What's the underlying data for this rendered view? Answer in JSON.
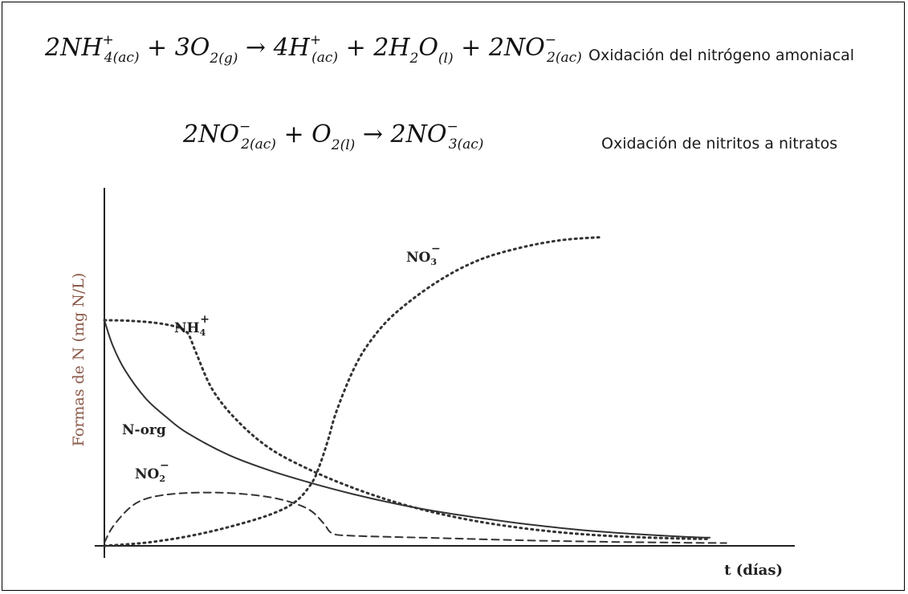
{
  "equations": [
    {
      "parts": [
        "2NH",
        "4(ac)",
        "+",
        "+ 3O",
        "2(g)",
        "→ 4H",
        "(ac)",
        "+",
        "+ 2H",
        "2",
        "O",
        "(l)",
        "+ 2NO",
        "2(ac)",
        "−"
      ],
      "note": "Oxidación del nitrógeno amoniacal"
    },
    {
      "parts": [
        "2NO",
        "2(ac)",
        "−",
        "+ O",
        "2(l)",
        "→ 2NO",
        "3(ac)",
        "−"
      ],
      "note": "Oxidación de nitritos a nitratos"
    }
  ],
  "chart_data": {
    "type": "line",
    "xlabel": "t (días)",
    "ylabel": "Formas de N (mg N/L)",
    "grid": false,
    "series": [
      {
        "name": "NH4+",
        "label": "NH",
        "label_sub": "4",
        "label_sup": "+",
        "style": "dotted",
        "x": [
          0,
          0.3,
          0.6,
          0.85,
          1.0,
          1.1,
          1.3,
          1.6,
          2.0,
          2.5,
          3.0,
          3.5,
          4.0,
          4.5,
          5.0,
          5.5,
          6.0,
          6.5,
          7.0,
          7.3
        ],
        "y": [
          0.72,
          0.718,
          0.712,
          0.7,
          0.68,
          0.62,
          0.5,
          0.4,
          0.31,
          0.24,
          0.185,
          0.14,
          0.105,
          0.078,
          0.058,
          0.043,
          0.033,
          0.027,
          0.023,
          0.022
        ]
      },
      {
        "name": "N-org",
        "label": "N-org",
        "style": "solid",
        "x": [
          0,
          0.1,
          0.25,
          0.5,
          0.75,
          1.0,
          1.5,
          2.0,
          2.5,
          3.0,
          3.5,
          4.0,
          4.5,
          5.0,
          5.5,
          6.0,
          6.5,
          7.0,
          7.3
        ],
        "y": [
          0.72,
          0.64,
          0.56,
          0.47,
          0.41,
          0.36,
          0.29,
          0.24,
          0.2,
          0.165,
          0.135,
          0.11,
          0.09,
          0.072,
          0.057,
          0.045,
          0.036,
          0.029,
          0.026
        ]
      },
      {
        "name": "NO2-",
        "label": "NO",
        "label_sub": "2",
        "label_sup": "−",
        "style": "dashed",
        "x": [
          0,
          0.1,
          0.3,
          0.5,
          0.8,
          1.2,
          1.6,
          2.0,
          2.3,
          2.5,
          2.65,
          2.75,
          3.0,
          4.0,
          5.0,
          6.0,
          7.0,
          7.5
        ],
        "y": [
          0.01,
          0.06,
          0.12,
          0.15,
          0.165,
          0.17,
          0.167,
          0.155,
          0.135,
          0.11,
          0.07,
          0.04,
          0.032,
          0.025,
          0.018,
          0.013,
          0.01,
          0.009
        ]
      },
      {
        "name": "NO3-",
        "label": "NO",
        "label_sub": "3",
        "label_sup": "−",
        "style": "dotted",
        "x": [
          0,
          0.5,
          1.0,
          1.5,
          2.0,
          2.3,
          2.5,
          2.6,
          2.7,
          2.8,
          3.0,
          3.2,
          3.5,
          4.0,
          4.5,
          5.0,
          5.5,
          6.0
        ],
        "y": [
          0.0,
          0.01,
          0.03,
          0.06,
          0.1,
          0.14,
          0.2,
          0.26,
          0.34,
          0.43,
          0.56,
          0.65,
          0.74,
          0.84,
          0.91,
          0.95,
          0.975,
          0.985
        ]
      }
    ],
    "xlim": [
      0,
      7.6
    ],
    "ylim": [
      0,
      1.05
    ]
  }
}
